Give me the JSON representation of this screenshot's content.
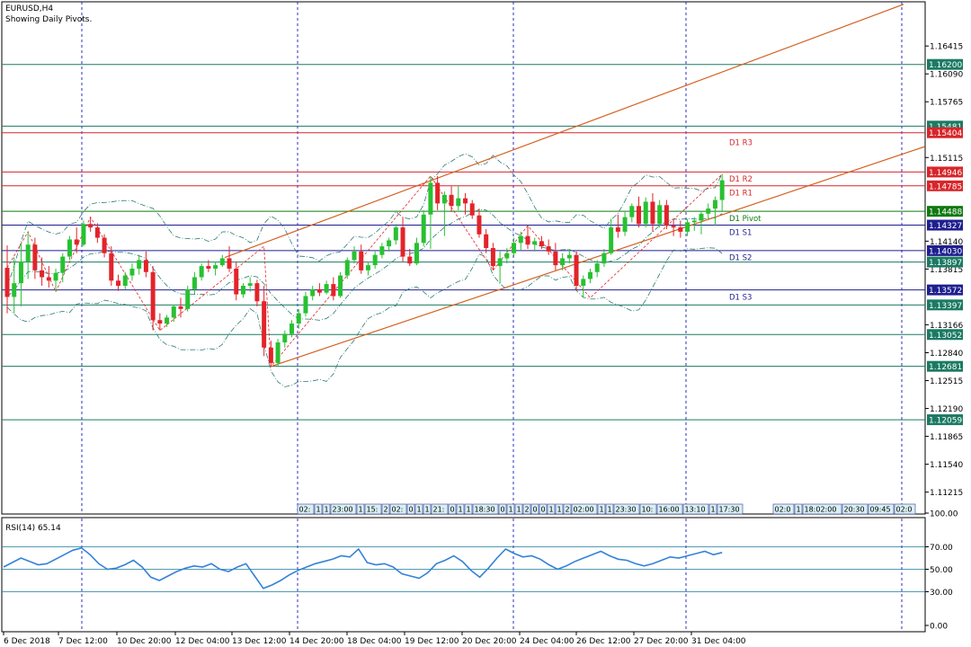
{
  "header": {
    "symbol": "EURUSD,H4",
    "subtitle": "Showing Daily Pivots."
  },
  "rsi": {
    "label": "RSI(14) 65.14",
    "ticks": [
      "100.00",
      "70.00",
      "50.00",
      "30.00",
      "0.00"
    ]
  },
  "price_ticks": [
    "1.16415",
    "1.16090",
    "1.15765",
    "1.15115",
    "1.14140",
    "1.13815",
    "1.13166",
    "1.12840",
    "1.12515",
    "1.12190",
    "1.11865",
    "1.11540",
    "1.11215"
  ],
  "levels": [
    {
      "value": "1.16200",
      "color": "#1b7a63",
      "kind": "h"
    },
    {
      "value": "1.15481",
      "color": "#1b7a63",
      "kind": "h"
    },
    {
      "value": "1.15404",
      "color": "#d7262b",
      "kind": "h"
    },
    {
      "value": "1.14946",
      "color": "#d7262b",
      "kind": "h"
    },
    {
      "value": "1.14785",
      "color": "#d7262b",
      "kind": "h"
    },
    {
      "value": "1.14488",
      "color": "#0f7a0f",
      "kind": "h"
    },
    {
      "value": "1.14327",
      "color": "#1f1f8f",
      "kind": "h"
    },
    {
      "value": "1.14030",
      "color": "#1f1f8f",
      "kind": "h"
    },
    {
      "value": "1.13897",
      "color": "#1b7a63",
      "kind": "h"
    },
    {
      "value": "1.13572",
      "color": "#1f1f8f",
      "kind": "h"
    },
    {
      "value": "1.13397",
      "color": "#1b7a63",
      "kind": "h"
    },
    {
      "value": "1.13052",
      "color": "#1b7a63",
      "kind": "h"
    },
    {
      "value": "1.12681",
      "color": "#1b7a63",
      "kind": "h"
    },
    {
      "value": "1.12059",
      "color": "#1b7a63",
      "kind": "h"
    }
  ],
  "pivot_labels": [
    {
      "text": "D1  R3",
      "price": 1.1529,
      "color": "#d7262b"
    },
    {
      "text": "D1  R2",
      "price": 1.14865,
      "color": "#d7262b"
    },
    {
      "text": "D1  R1",
      "price": 1.14705,
      "color": "#d7262b"
    },
    {
      "text": "D1  Pivot",
      "price": 1.14405,
      "color": "#0f7a0f"
    },
    {
      "text": "D1  S1",
      "price": 1.14245,
      "color": "#1f1f8f"
    },
    {
      "text": "D1  S2",
      "price": 1.1395,
      "color": "#1f1f8f"
    },
    {
      "text": "D1  S3",
      "price": 1.13492,
      "color": "#1f1f8f"
    }
  ],
  "time_axis": [
    "6 Dec 2018",
    "7 Dec 12:00",
    "10 Dec 20:00",
    "12 Dec 04:00",
    "13 Dec 12:00",
    "14 Dec 20:00",
    "18 Dec 04:00",
    "19 Dec 12:00",
    "20 Dec 20:00",
    "24 Dec 04:00",
    "26 Dec 12:00",
    "27 Dec 20:00",
    "31 Dec 04:00"
  ],
  "timeline_labels": [
    "02:",
    "1",
    "1",
    "23:00",
    "1",
    "15:",
    "2",
    "02:",
    "0",
    "1",
    "1",
    "21:",
    "0",
    "1",
    "1",
    "18:30",
    "0",
    "1",
    "1",
    "2",
    "0",
    "0",
    "1",
    "1",
    "2",
    "02:00",
    "1",
    "1",
    "23:30",
    "10:",
    "16:00",
    "13:10",
    "1",
    "17:30",
    "02:0",
    "1",
    "18:02:00",
    "20:30",
    "09:45",
    "02:0"
  ],
  "chart_data": {
    "type": "candlestick",
    "title": "EURUSD,H4",
    "subtitle": "Showing Daily Pivots.",
    "ylim": [
      1.1096,
      1.1693
    ],
    "candles": [
      [
        1.1383,
        1.1409,
        1.133,
        1.1349
      ],
      [
        1.1349,
        1.1395,
        1.133,
        1.1365
      ],
      [
        1.1365,
        1.1411,
        1.1338,
        1.139
      ],
      [
        1.139,
        1.1425,
        1.137,
        1.141
      ],
      [
        1.141,
        1.1418,
        1.137,
        1.138
      ],
      [
        1.138,
        1.1395,
        1.1362,
        1.1372
      ],
      [
        1.1372,
        1.1385,
        1.136,
        1.1368
      ],
      [
        1.1368,
        1.1382,
        1.1355,
        1.1377
      ],
      [
        1.1377,
        1.14,
        1.1366,
        1.1396
      ],
      [
        1.1396,
        1.142,
        1.1392,
        1.1416
      ],
      [
        1.1416,
        1.143,
        1.14,
        1.141
      ],
      [
        1.141,
        1.1438,
        1.1408,
        1.1434
      ],
      [
        1.1434,
        1.1442,
        1.1425,
        1.143
      ],
      [
        1.143,
        1.1435,
        1.1412,
        1.1418
      ],
      [
        1.1418,
        1.1422,
        1.1395,
        1.14
      ],
      [
        1.14,
        1.1408,
        1.1362,
        1.1368
      ],
      [
        1.1368,
        1.1375,
        1.1356,
        1.1362
      ],
      [
        1.1362,
        1.1378,
        1.1358,
        1.1374
      ],
      [
        1.1374,
        1.1388,
        1.1368,
        1.1382
      ],
      [
        1.1382,
        1.1398,
        1.1375,
        1.1392
      ],
      [
        1.1392,
        1.1402,
        1.1372,
        1.1378
      ],
      [
        1.1378,
        1.1385,
        1.131,
        1.1322
      ],
      [
        1.1322,
        1.133,
        1.131,
        1.1318
      ],
      [
        1.1318,
        1.1328,
        1.1314,
        1.1325
      ],
      [
        1.1325,
        1.134,
        1.132,
        1.1338
      ],
      [
        1.1338,
        1.1348,
        1.1325,
        1.1335
      ],
      [
        1.1335,
        1.1362,
        1.1332,
        1.1358
      ],
      [
        1.1358,
        1.1378,
        1.1352,
        1.1372
      ],
      [
        1.1372,
        1.1388,
        1.1368,
        1.1385
      ],
      [
        1.1385,
        1.1392,
        1.1378,
        1.1382
      ],
      [
        1.1382,
        1.139,
        1.1374,
        1.1386
      ],
      [
        1.1386,
        1.1398,
        1.1384,
        1.1394
      ],
      [
        1.1394,
        1.1408,
        1.1378,
        1.1382
      ],
      [
        1.1382,
        1.139,
        1.1345,
        1.1352
      ],
      [
        1.1352,
        1.1365,
        1.1348,
        1.1362
      ],
      [
        1.1362,
        1.1372,
        1.1355,
        1.1365
      ],
      [
        1.1365,
        1.1369,
        1.1338,
        1.1344
      ],
      [
        1.1344,
        1.1362,
        1.128,
        1.129
      ],
      [
        1.129,
        1.1298,
        1.1268,
        1.1272
      ],
      [
        1.1272,
        1.13,
        1.1268,
        1.1296
      ],
      [
        1.1296,
        1.131,
        1.129,
        1.1306
      ],
      [
        1.1306,
        1.1322,
        1.1302,
        1.1318
      ],
      [
        1.1318,
        1.1335,
        1.1312,
        1.133
      ],
      [
        1.133,
        1.1355,
        1.1326,
        1.135
      ],
      [
        1.135,
        1.1362,
        1.1345,
        1.1358
      ],
      [
        1.1358,
        1.1365,
        1.135,
        1.1354
      ],
      [
        1.1354,
        1.1368,
        1.1352,
        1.1364
      ],
      [
        1.1364,
        1.1372,
        1.1345,
        1.135
      ],
      [
        1.135,
        1.1378,
        1.1348,
        1.1374
      ],
      [
        1.1374,
        1.1395,
        1.137,
        1.1392
      ],
      [
        1.1392,
        1.1408,
        1.1388,
        1.1402
      ],
      [
        1.1402,
        1.141,
        1.1376,
        1.138
      ],
      [
        1.138,
        1.139,
        1.1374,
        1.1386
      ],
      [
        1.1386,
        1.1402,
        1.1382,
        1.1398
      ],
      [
        1.1398,
        1.1412,
        1.1394,
        1.1408
      ],
      [
        1.1408,
        1.1418,
        1.1402,
        1.1415
      ],
      [
        1.1415,
        1.1434,
        1.141,
        1.143
      ],
      [
        1.143,
        1.1442,
        1.139,
        1.1396
      ],
      [
        1.1396,
        1.1405,
        1.1385,
        1.1388
      ],
      [
        1.1388,
        1.1418,
        1.1386,
        1.1412
      ],
      [
        1.1412,
        1.145,
        1.1408,
        1.1445
      ],
      [
        1.1445,
        1.149,
        1.1405,
        1.1482
      ],
      [
        1.1482,
        1.149,
        1.145,
        1.1458
      ],
      [
        1.1458,
        1.1472,
        1.142,
        1.1468
      ],
      [
        1.1468,
        1.1478,
        1.1448,
        1.1455
      ],
      [
        1.1455,
        1.1478,
        1.145,
        1.1464
      ],
      [
        1.1464,
        1.147,
        1.1445,
        1.1458
      ],
      [
        1.1458,
        1.1462,
        1.144,
        1.1444
      ],
      [
        1.1444,
        1.1452,
        1.1418,
        1.1422
      ],
      [
        1.1422,
        1.1428,
        1.14,
        1.1406
      ],
      [
        1.1406,
        1.1412,
        1.138,
        1.1385
      ],
      [
        1.1385,
        1.1402,
        1.1365,
        1.1394
      ],
      [
        1.1394,
        1.1406,
        1.1388,
        1.14
      ],
      [
        1.14,
        1.1418,
        1.1396,
        1.1412
      ],
      [
        1.1412,
        1.1425,
        1.1404,
        1.142
      ],
      [
        1.142,
        1.1432,
        1.1405,
        1.141
      ],
      [
        1.141,
        1.1418,
        1.1402,
        1.1414
      ],
      [
        1.1414,
        1.142,
        1.1405,
        1.1408
      ],
      [
        1.1408,
        1.1416,
        1.1398,
        1.1402
      ],
      [
        1.1402,
        1.1412,
        1.138,
        1.1386
      ],
      [
        1.1386,
        1.14,
        1.138,
        1.1394
      ],
      [
        1.1394,
        1.1405,
        1.1388,
        1.1398
      ],
      [
        1.1398,
        1.1402,
        1.1356,
        1.1362
      ],
      [
        1.1362,
        1.1374,
        1.1348,
        1.137
      ],
      [
        1.137,
        1.1382,
        1.1365,
        1.1378
      ],
      [
        1.1378,
        1.1392,
        1.1372,
        1.1388
      ],
      [
        1.1388,
        1.1405,
        1.1384,
        1.14
      ],
      [
        1.14,
        1.144,
        1.1398,
        1.143
      ],
      [
        1.143,
        1.1445,
        1.1418,
        1.1425
      ],
      [
        1.1425,
        1.1448,
        1.142,
        1.1442
      ],
      [
        1.1442,
        1.1458,
        1.1436,
        1.1455
      ],
      [
        1.1455,
        1.1466,
        1.143,
        1.1434
      ],
      [
        1.1434,
        1.1465,
        1.143,
        1.146
      ],
      [
        1.146,
        1.147,
        1.1425,
        1.1434
      ],
      [
        1.1434,
        1.1462,
        1.143,
        1.1456
      ],
      [
        1.1456,
        1.1462,
        1.1428,
        1.1432
      ],
      [
        1.1432,
        1.144,
        1.142,
        1.143
      ],
      [
        1.143,
        1.1438,
        1.1418,
        1.1425
      ],
      [
        1.1425,
        1.144,
        1.142,
        1.1436
      ],
      [
        1.1436,
        1.1442,
        1.1426,
        1.1438
      ],
      [
        1.1438,
        1.1448,
        1.1422,
        1.1446
      ],
      [
        1.1446,
        1.1458,
        1.144,
        1.1452
      ],
      [
        1.1452,
        1.1466,
        1.1432,
        1.1462
      ],
      [
        1.1462,
        1.1492,
        1.1448,
        1.1485
      ]
    ],
    "rsi": [
      52,
      56,
      60,
      57,
      54,
      55,
      59,
      63,
      67,
      69,
      63,
      55,
      50,
      51,
      54,
      58,
      52,
      43,
      40,
      44,
      48,
      51,
      53,
      52,
      55,
      50,
      48,
      52,
      55,
      44,
      33,
      36,
      40,
      45,
      49,
      52,
      55,
      57,
      59,
      62,
      61,
      68,
      56,
      54,
      55,
      52,
      46,
      44,
      42,
      47,
      55,
      58,
      62,
      57,
      49,
      43,
      51,
      60,
      68,
      64,
      61,
      62,
      59,
      54,
      50,
      53,
      57,
      60,
      63,
      66,
      62,
      59,
      58,
      55,
      53,
      55,
      58,
      61,
      60,
      62,
      64,
      66,
      63,
      65
    ],
    "channel": [
      [
        30,
        1.1322
      ],
      [
        1.1458,
        1.1412
      ]
    ],
    "pivot_value": 1.14488
  },
  "colors": {
    "bull": "#27c131",
    "bear": "#e3232a",
    "grid": "#2c2cc9",
    "channel": "#d3601f",
    "rsi": "#3482d6",
    "bands": "#2b7a75"
  }
}
